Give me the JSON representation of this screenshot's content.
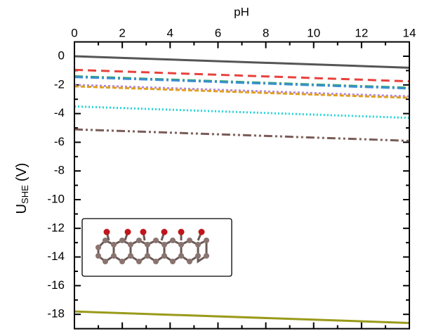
{
  "chart_data": {
    "type": "line",
    "x_label": "pH",
    "y_label": {
      "main": "U",
      "sub": "SHE",
      "unit": "(V)"
    },
    "x": [
      0,
      14
    ],
    "series": [
      {
        "color": "#555555",
        "dash": "none",
        "values": [
          0,
          -0.8
        ]
      },
      {
        "color": "#e8413c",
        "dash": "12,7",
        "values": [
          -0.95,
          -1.75
        ]
      },
      {
        "color": "#2ca25f",
        "dash": "12,4,3,4",
        "values": [
          -1.4,
          -2.2
        ]
      },
      {
        "color": "#3b8fd1",
        "dash": "12,4,3,4",
        "values": [
          -1.45,
          -2.25
        ]
      },
      {
        "color": "#b487e0",
        "dash": "3,3",
        "values": [
          -2.0,
          -2.8
        ]
      },
      {
        "color": "#e0a020",
        "dash": "6,3",
        "values": [
          -2.1,
          -2.9
        ]
      },
      {
        "color": "#22d3d6",
        "dash": "2,3",
        "values": [
          -3.5,
          -4.3
        ]
      },
      {
        "color": "#7a5c58",
        "dash": "12,4,3,4,3,4",
        "values": [
          -5.1,
          -5.9
        ]
      },
      {
        "color": "#9a9a1a",
        "dash": "none",
        "values": [
          -17.8,
          -18.6
        ]
      }
    ],
    "xlim": [
      0,
      14
    ],
    "xticks": [
      0,
      2,
      4,
      6,
      8,
      10,
      12,
      14
    ],
    "xminor": [
      1,
      3,
      5,
      7,
      9,
      11,
      13
    ],
    "ylim": [
      -19,
      1
    ],
    "yticks": [
      0,
      -2,
      -4,
      -6,
      -8,
      -10,
      -12,
      -14,
      -16,
      -18
    ],
    "yminor": [
      -1,
      -3,
      -5,
      -7,
      -9,
      -11,
      -13,
      -15,
      -17
    ]
  }
}
